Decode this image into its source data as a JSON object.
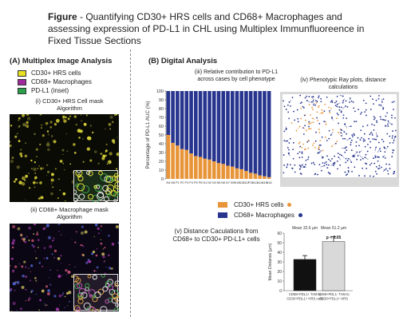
{
  "figure": {
    "title_lead": "Figure",
    "title_text": " - Quantifying CD30+ HRS cells and CD68+ Macrophages and assessing expression of PD-L1 in CHL using Multiplex Immunfluoreence in Fixed Tissue Sections"
  },
  "section_a": {
    "heading": "(A) Multiplex Image Analysis",
    "legend": [
      {
        "label": "CD30+ HRS cells",
        "color": "#e8e020"
      },
      {
        "label": "CD68+ Macrophages",
        "color": "#a02a9a"
      },
      {
        "label": "PD-L1 (inset)",
        "color": "#2aa04a"
      }
    ],
    "panel_i_caption_line1": "(i) CD30+ HRS Cell mask",
    "panel_i_caption_line2": "Algorithm",
    "panel_ii_caption_line1": "(ii) CD68+ Macrophage mask",
    "panel_ii_caption_line2": "Algorithm"
  },
  "section_b": {
    "heading": "(B) Digital Analysis",
    "panel_iii_caption_line1": "(iii) Relative contribution to PD-L1",
    "panel_iii_caption_line2": "across cases by cell phenotype",
    "panel_iv_caption_line1": "(iv) Phenotypic Ray plots, distance",
    "panel_iv_caption_line2": "calculations",
    "panel_v_caption_line1": "(v) Distance Caculations from",
    "panel_v_caption_line2": "CD68+ to CD30+ PD-L1+ cells",
    "legend": [
      {
        "label": "CD30+ HRS cells",
        "color": "#e8953a"
      },
      {
        "label": "CD68+ Macrophages",
        "color": "#27358f"
      }
    ]
  },
  "chart_data": [
    {
      "type": "bar",
      "stacked": true,
      "ylabel": "Percentage of PD-L1 AUC (%)",
      "ylim": [
        0,
        100
      ],
      "yticks": [
        0,
        10,
        20,
        30,
        40,
        50,
        60,
        70,
        80,
        90,
        100
      ],
      "categories": [
        "N4",
        "N8",
        "P1",
        "P2",
        "P3",
        "P4",
        "P5",
        "P6",
        "N1",
        "N2",
        "N3",
        "N5",
        "N6",
        "N7",
        "N9",
        "N10",
        "N11",
        "N12",
        "P15",
        "N13",
        "N14",
        "N15",
        "N16"
      ],
      "series": [
        {
          "name": "CD30+ HRS cells",
          "color": "#e8953a",
          "values": [
            50,
            41,
            38,
            34,
            33,
            29,
            26,
            25,
            23,
            22,
            20,
            18,
            17,
            15,
            14,
            12,
            11,
            9,
            7,
            6,
            4,
            3,
            2
          ]
        },
        {
          "name": "CD68+ Macrophages",
          "color": "#27358f",
          "values": [
            50,
            59,
            62,
            66,
            67,
            71,
            74,
            75,
            77,
            78,
            80,
            82,
            83,
            85,
            86,
            88,
            89,
            91,
            93,
            94,
            96,
            97,
            98
          ]
        }
      ]
    },
    {
      "type": "bar",
      "ylabel": "Mean Distance (µm)",
      "ylim": [
        0,
        60
      ],
      "yticks": [
        0,
        10,
        20,
        30,
        40,
        50,
        60
      ],
      "categories": [
        "CD68+PDL1+ TAM to CD30+PDL1+ HRS cells",
        "CD68+PDL1- TAM to CD30+PDL1+ HRS"
      ],
      "category_lines": [
        [
          "CD68+PDL1+ TAM to",
          "CD30+PDL1+ HRS cells"
        ],
        [
          "CD68+PDL1- TAM to",
          "CD30+PDL1+ HRS"
        ]
      ],
      "values": [
        32.6,
        51.2
      ],
      "errors": [
        4,
        5
      ],
      "colors": [
        "#111111",
        "#d9d9d9"
      ],
      "annotations": [
        "Mean 32.6 µm",
        "Mean 51.2 µm"
      ],
      "significance": "p < 0.05"
    }
  ]
}
